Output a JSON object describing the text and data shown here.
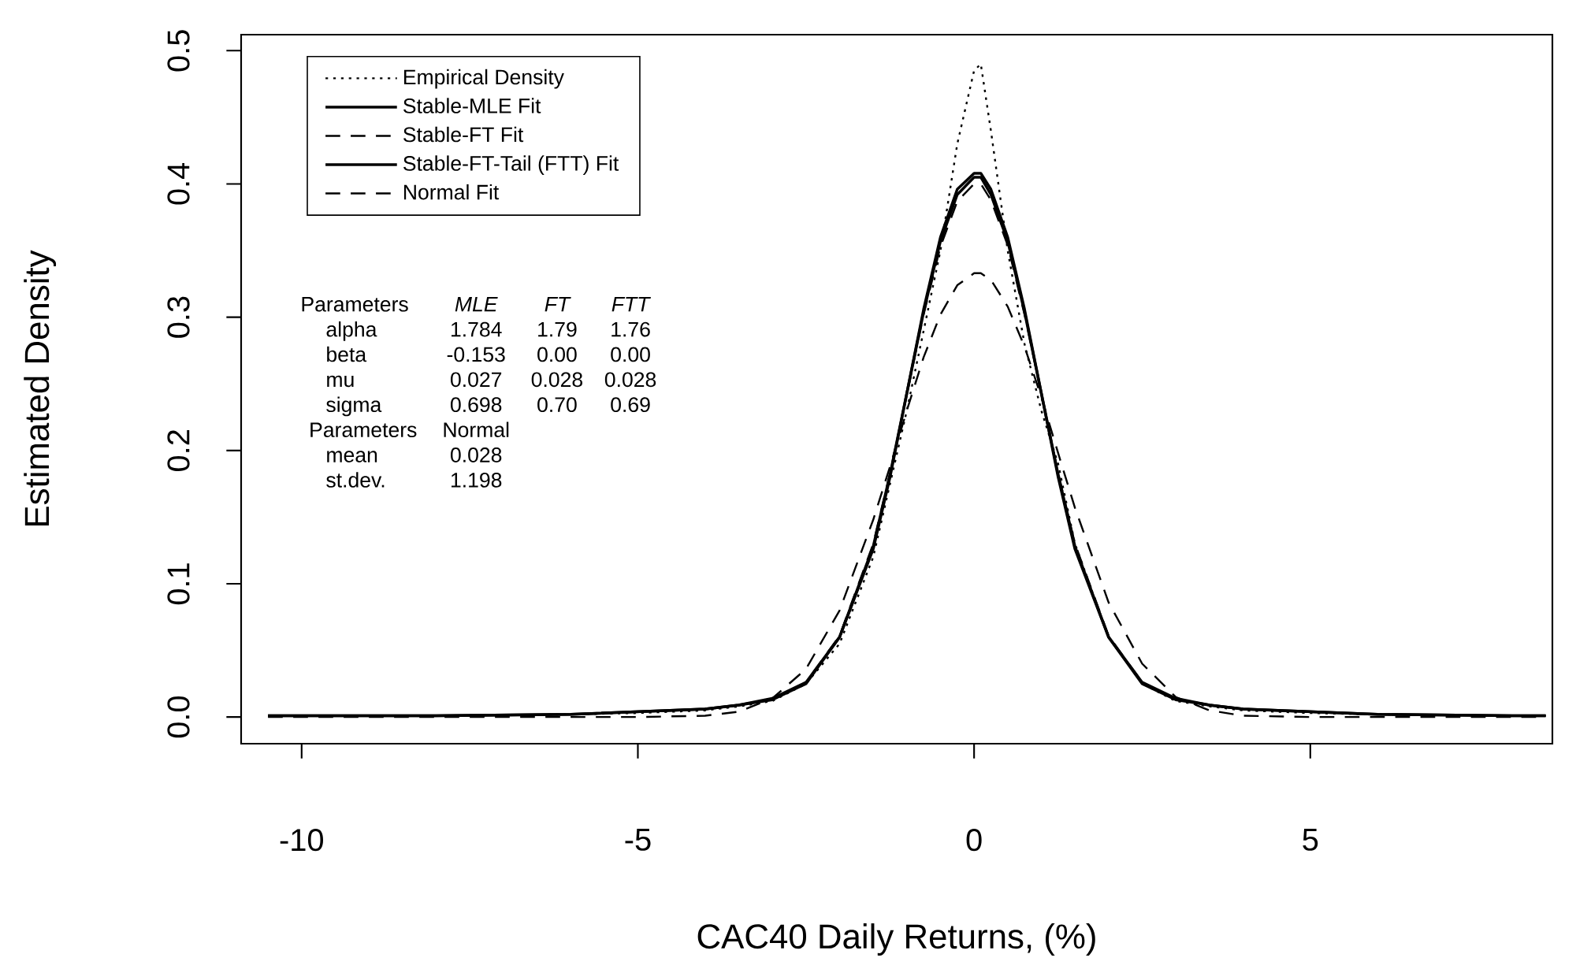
{
  "chart_data": {
    "type": "line",
    "xlabel": "CAC40 Daily Returns, (%)",
    "ylabel": "Estimated Density",
    "xlim": [
      -10.9,
      8.6
    ],
    "ylim": [
      -0.02,
      0.512
    ],
    "xticks": [
      -10,
      -5,
      0,
      5
    ],
    "yticks": [
      {
        "value": 0,
        "label": "0.0"
      },
      0.1,
      0.2,
      0.3,
      0.4,
      0.5
    ],
    "legend": "top left",
    "x": [
      -10.5,
      -8,
      -6,
      -5,
      -4,
      -3.5,
      -3,
      -2.5,
      -2,
      -1.5,
      -1.25,
      -1,
      -0.75,
      -0.5,
      -0.25,
      0,
      0.1,
      0.25,
      0.5,
      0.75,
      1,
      1.25,
      1.5,
      2,
      2.5,
      3,
      3.5,
      4,
      5,
      6,
      8,
      8.5
    ],
    "series": [
      {
        "name": "Empirical Density",
        "color": "#000000",
        "line_style": "dotted",
        "values": [
          0.001,
          0.001,
          0.002,
          0.003,
          0.005,
          0.008,
          0.012,
          0.025,
          0.055,
          0.12,
          0.175,
          0.23,
          0.29,
          0.35,
          0.43,
          0.485,
          0.49,
          0.44,
          0.35,
          0.28,
          0.23,
          0.19,
          0.13,
          0.06,
          0.025,
          0.012,
          0.008,
          0.005,
          0.003,
          0.002,
          0.001,
          0.001
        ]
      },
      {
        "name": "Stable-MLE Fit",
        "color": "#000000",
        "line_style": "solid",
        "values": [
          0.001,
          0.001,
          0.002,
          0.004,
          0.006,
          0.009,
          0.013,
          0.025,
          0.06,
          0.128,
          0.182,
          0.243,
          0.304,
          0.357,
          0.392,
          0.405,
          0.405,
          0.392,
          0.357,
          0.304,
          0.243,
          0.182,
          0.128,
          0.06,
          0.025,
          0.013,
          0.009,
          0.006,
          0.004,
          0.002,
          0.001,
          0.001
        ]
      },
      {
        "name": "Stable-FT Fit",
        "color": "#000000",
        "line_style": "dashed",
        "values": [
          0.001,
          0.001,
          0.002,
          0.004,
          0.006,
          0.009,
          0.013,
          0.026,
          0.061,
          0.13,
          0.183,
          0.242,
          0.302,
          0.353,
          0.387,
          0.4,
          0.4,
          0.388,
          0.354,
          0.302,
          0.243,
          0.183,
          0.13,
          0.061,
          0.026,
          0.013,
          0.009,
          0.006,
          0.004,
          0.002,
          0.001,
          0.001
        ]
      },
      {
        "name": "Stable-FT-Tail (FTT) Fit",
        "color": "#000000",
        "line_style": "solid",
        "values": [
          0.001,
          0.001,
          0.002,
          0.004,
          0.006,
          0.009,
          0.014,
          0.026,
          0.06,
          0.126,
          0.18,
          0.243,
          0.306,
          0.36,
          0.396,
          0.408,
          0.408,
          0.396,
          0.36,
          0.306,
          0.243,
          0.18,
          0.126,
          0.06,
          0.026,
          0.014,
          0.009,
          0.006,
          0.004,
          0.002,
          0.001,
          0.001
        ]
      },
      {
        "name": "Normal Fit",
        "color": "#000000",
        "line_style": "dashed",
        "values": [
          0,
          0,
          0,
          0,
          0.001,
          0.004,
          0.014,
          0.036,
          0.08,
          0.148,
          0.188,
          0.23,
          0.27,
          0.302,
          0.324,
          0.333,
          0.333,
          0.328,
          0.308,
          0.278,
          0.24,
          0.198,
          0.157,
          0.086,
          0.04,
          0.015,
          0.005,
          0.001,
          0,
          0,
          0,
          0
        ]
      }
    ],
    "annotations": [
      "Parameters",
      "MLE",
      "FT",
      "FTT",
      "alpha",
      "1.784",
      "1.79",
      "1.76",
      "beta",
      "-0.153",
      "0.00",
      "0.00",
      "mu",
      "0.027",
      "0.028",
      "0.028",
      "sigma",
      "0.698",
      "0.70",
      "0.69",
      "Parameters",
      "Normal",
      "mean",
      "0.028",
      "st.dev.",
      "1.198"
    ]
  }
}
